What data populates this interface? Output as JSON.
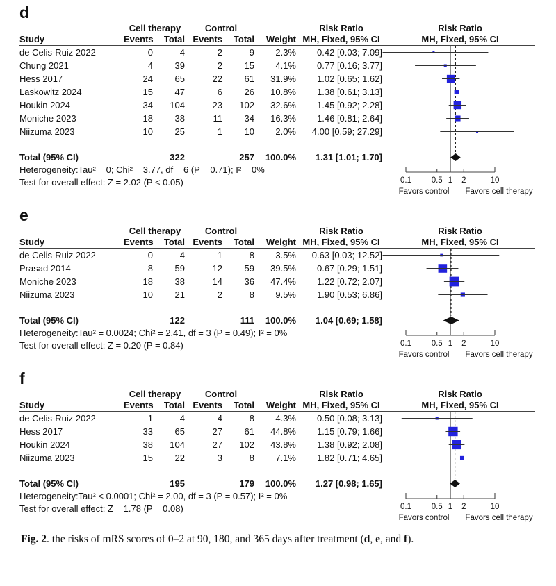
{
  "colors": {
    "square_blue": "#2222dd",
    "diamond_black": "#111111",
    "line_dark": "#333333",
    "rule": "#444444"
  },
  "table_headers": {
    "study": "Study",
    "group1": "Cell therapy",
    "group2": "Control",
    "events": "Events",
    "total": "Total",
    "weight": "Weight",
    "rr_title": "Risk Ratio",
    "rr_sub": "MH, Fixed, 95% CI"
  },
  "axis": {
    "scale": "log",
    "ticks": [
      0.1,
      0.5,
      1,
      2,
      10
    ],
    "tick_labels": [
      "0.1",
      "0.5",
      "1",
      "2",
      "10"
    ],
    "min": 0.1,
    "max": 10,
    "left_label": "Favors control",
    "right_label": "Favors cell therapy"
  },
  "chart_data": [
    {
      "type": "forest",
      "panel": "d",
      "studies": [
        {
          "study": "de Celis-Ruiz 2022",
          "events1": "0",
          "total1": "4",
          "events2": "2",
          "total2": "9",
          "weight": "2.3%",
          "weight_value": 2.3,
          "rr": 0.42,
          "low": 0.03,
          "high": 7.09,
          "rr_text": "0.42 [0.03; 7.09]"
        },
        {
          "study": "Chung 2021",
          "events1": "4",
          "total1": "39",
          "events2": "2",
          "total2": "15",
          "weight": "4.1%",
          "weight_value": 4.1,
          "rr": 0.77,
          "low": 0.16,
          "high": 3.77,
          "rr_text": "0.77 [0.16; 3.77]"
        },
        {
          "study": "Hess 2017",
          "events1": "24",
          "total1": "65",
          "events2": "22",
          "total2": "61",
          "weight": "31.9%",
          "weight_value": 31.9,
          "rr": 1.02,
          "low": 0.65,
          "high": 1.62,
          "rr_text": "1.02 [0.65; 1.62]"
        },
        {
          "study": "Laskowitz 2024",
          "events1": "15",
          "total1": "47",
          "events2": "6",
          "total2": "26",
          "weight": "10.8%",
          "weight_value": 10.8,
          "rr": 1.38,
          "low": 0.61,
          "high": 3.13,
          "rr_text": "1.38 [0.61; 3.13]"
        },
        {
          "study": "Houkin 2024",
          "events1": "34",
          "total1": "104",
          "events2": "23",
          "total2": "102",
          "weight": "32.6%",
          "weight_value": 32.6,
          "rr": 1.45,
          "low": 0.92,
          "high": 2.28,
          "rr_text": "1.45 [0.92; 2.28]"
        },
        {
          "study": "Moniche 2023",
          "events1": "18",
          "total1": "38",
          "events2": "11",
          "total2": "34",
          "weight": "16.3%",
          "weight_value": 16.3,
          "rr": 1.46,
          "low": 0.81,
          "high": 2.64,
          "rr_text": "1.46 [0.81; 2.64]"
        },
        {
          "study": "Niizuma 2023",
          "events1": "10",
          "total1": "25",
          "events2": "1",
          "total2": "10",
          "weight": "2.0%",
          "weight_value": 2.0,
          "rr": 4.0,
          "low": 0.59,
          "high": 27.29,
          "rr_text": "4.00 [0.59; 27.29]"
        }
      ],
      "total": {
        "label": "Total (95% CI)",
        "total1": "322",
        "total2": "257",
        "weight": "100.0%",
        "rr": 1.31,
        "low": 1.01,
        "high": 1.7,
        "rr_text": "1.31 [1.01; 1.70]"
      },
      "heterogeneity": "Heterogeneity:Tau² = 0; Chi² = 3.77, df = 6 (P = 0.71); I² = 0%",
      "overall_test": "Test for overall effect: Z = 2.02 (P < 0.05)"
    },
    {
      "type": "forest",
      "panel": "e",
      "studies": [
        {
          "study": "de Celis-Ruiz 2022",
          "events1": "0",
          "total1": "4",
          "events2": "1",
          "total2": "8",
          "weight": "3.5%",
          "weight_value": 3.5,
          "rr": 0.63,
          "low": 0.03,
          "high": 12.52,
          "rr_text": "0.63 [0.03; 12.52]"
        },
        {
          "study": "Prasad 2014",
          "events1": "8",
          "total1": "59",
          "events2": "12",
          "total2": "59",
          "weight": "39.5%",
          "weight_value": 39.5,
          "rr": 0.67,
          "low": 0.29,
          "high": 1.51,
          "rr_text": "0.67 [0.29; 1.51]"
        },
        {
          "study": "Moniche 2023",
          "events1": "18",
          "total1": "38",
          "events2": "14",
          "total2": "36",
          "weight": "47.4%",
          "weight_value": 47.4,
          "rr": 1.22,
          "low": 0.72,
          "high": 2.07,
          "rr_text": "1.22 [0.72; 2.07]"
        },
        {
          "study": "Niizuma 2023",
          "events1": "10",
          "total1": "21",
          "events2": "2",
          "total2": "8",
          "weight": "9.5%",
          "weight_value": 9.5,
          "rr": 1.9,
          "low": 0.53,
          "high": 6.86,
          "rr_text": "1.90 [0.53; 6.86]"
        }
      ],
      "total": {
        "label": "Total (95% CI)",
        "total1": "122",
        "total2": "111",
        "weight": "100.0%",
        "rr": 1.04,
        "low": 0.69,
        "high": 1.58,
        "rr_text": "1.04 [0.69; 1.58]"
      },
      "heterogeneity": "Heterogeneity:Tau² = 0.0024; Chi² = 2.41, df = 3 (P = 0.49); I² = 0%",
      "overall_test": "Test for overall effect: Z = 0.20 (P = 0.84)"
    },
    {
      "type": "forest",
      "panel": "f",
      "studies": [
        {
          "study": "de Celis-Ruiz 2022",
          "events1": "1",
          "total1": "4",
          "events2": "4",
          "total2": "8",
          "weight": "4.3%",
          "weight_value": 4.3,
          "rr": 0.5,
          "low": 0.08,
          "high": 3.13,
          "rr_text": "0.50 [0.08; 3.13]"
        },
        {
          "study": "Hess 2017",
          "events1": "33",
          "total1": "65",
          "events2": "27",
          "total2": "61",
          "weight": "44.8%",
          "weight_value": 44.8,
          "rr": 1.15,
          "low": 0.79,
          "high": 1.66,
          "rr_text": "1.15 [0.79; 1.66]"
        },
        {
          "study": "Houkin 2024",
          "events1": "38",
          "total1": "104",
          "events2": "27",
          "total2": "102",
          "weight": "43.8%",
          "weight_value": 43.8,
          "rr": 1.38,
          "low": 0.92,
          "high": 2.08,
          "rr_text": "1.38 [0.92; 2.08]"
        },
        {
          "study": "Niizuma 2023",
          "events1": "15",
          "total1": "22",
          "events2": "3",
          "total2": "8",
          "weight": "7.1%",
          "weight_value": 7.1,
          "rr": 1.82,
          "low": 0.71,
          "high": 4.65,
          "rr_text": "1.82 [0.71; 4.65]"
        }
      ],
      "total": {
        "label": "Total (95% CI)",
        "total1": "195",
        "total2": "179",
        "weight": "100.0%",
        "rr": 1.27,
        "low": 0.98,
        "high": 1.65,
        "rr_text": "1.27 [0.98; 1.65]"
      },
      "heterogeneity": "Heterogeneity:Tau² < 0.0001; Chi² = 2.00, df = 3 (P = 0.57); I² = 0%",
      "overall_test": "Test for overall effect: Z = 1.78 (P = 0.08)"
    }
  ],
  "caption": {
    "segments": [
      {
        "text": "Fig. 2",
        "bold": true
      },
      {
        "text": ". the risks of mRS scores of 0–2 at 90, 180, and 365 days after treatment (",
        "bold": false
      },
      {
        "text": "d",
        "bold": true
      },
      {
        "text": ", ",
        "bold": false
      },
      {
        "text": "e",
        "bold": true
      },
      {
        "text": ", and ",
        "bold": false
      },
      {
        "text": "f",
        "bold": true
      },
      {
        "text": ").",
        "bold": false
      }
    ]
  }
}
